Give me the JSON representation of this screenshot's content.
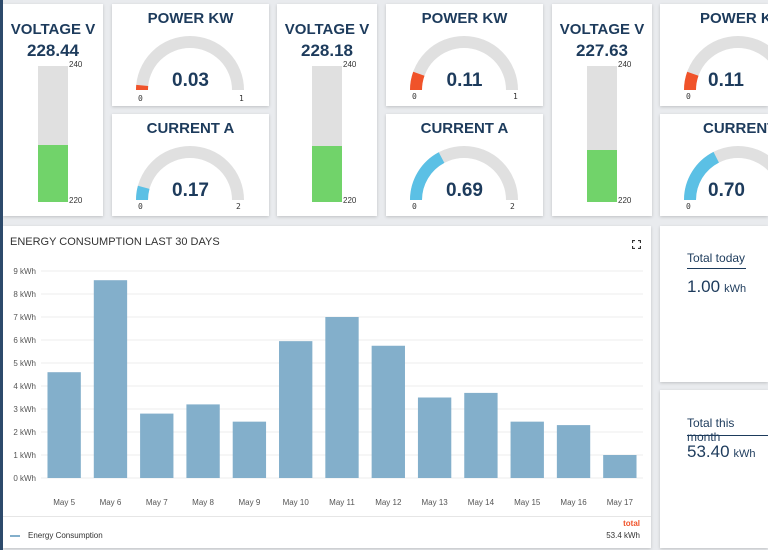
{
  "voltage1": {
    "title": "VOLTAGE V",
    "value": "228.44",
    "max": "240",
    "min": "220",
    "level": 0.42,
    "color": "#71d36a"
  },
  "voltage2": {
    "title": "VOLTAGE V",
    "value": "228.18",
    "max": "240",
    "min": "220",
    "level": 0.41,
    "color": "#71d36a"
  },
  "voltage3": {
    "title": "VOLTAGE V",
    "value": "227.63",
    "max": "240",
    "min": "220",
    "level": 0.38,
    "color": "#71d36a"
  },
  "power1": {
    "title": "POWER KW",
    "value": "0.03",
    "min": "0",
    "max": "1",
    "level": 0.03,
    "color": "#f0532a"
  },
  "power2": {
    "title": "POWER KW",
    "value": "0.11",
    "min": "0",
    "max": "1",
    "level": 0.11,
    "color": "#f0532a"
  },
  "power3": {
    "title": "POWER KW",
    "value": "0.11",
    "min": "0",
    "level": 0.11,
    "color": "#f0532a"
  },
  "current1": {
    "title": "CURRENT A",
    "value": "0.17",
    "min": "0",
    "max": "2",
    "level": 0.085,
    "color": "#5bc0e5"
  },
  "current2": {
    "title": "CURRENT A",
    "value": "0.69",
    "min": "0",
    "max": "2",
    "level": 0.345,
    "color": "#5bc0e5"
  },
  "current3": {
    "title": "CURRENT",
    "value": "0.70",
    "min": "0",
    "level": 0.35,
    "color": "#5bc0e5"
  },
  "energy_panel": {
    "title": "ENERGY CONSUMPTION LAST 30 DAYS",
    "fullscreen_icon": "fullscreen-icon",
    "legend_label": "Energy Consumption",
    "legend_header": "total",
    "legend_total": "53.4 kWh"
  },
  "totals": {
    "today_label": "Total today",
    "today_value": "1.00",
    "today_unit": "kWh",
    "month_label": "Total this month",
    "month_value": "53.40",
    "month_unit": "kWh"
  },
  "chart_data": {
    "type": "bar",
    "title": "ENERGY CONSUMPTION LAST 30 DAYS",
    "categories": [
      "May 5",
      "May 6",
      "May 7",
      "May 8",
      "May 9",
      "May 10",
      "May 11",
      "May 12",
      "May 13",
      "May 14",
      "May 15",
      "May 16",
      "May 17"
    ],
    "series": [
      {
        "name": "Energy Consumption",
        "values": [
          4.6,
          8.6,
          2.8,
          3.2,
          2.45,
          5.95,
          7.0,
          5.75,
          3.5,
          3.7,
          2.45,
          2.3,
          1.0
        ]
      }
    ],
    "yticks": [
      "0 kWh",
      "1 kWh",
      "2 kWh",
      "3 kWh",
      "4 kWh",
      "5 kWh",
      "6 kWh",
      "7 kWh",
      "8 kWh",
      "9 kWh"
    ],
    "ylim": [
      0,
      9
    ],
    "grid": true,
    "color": "#83afcb"
  }
}
